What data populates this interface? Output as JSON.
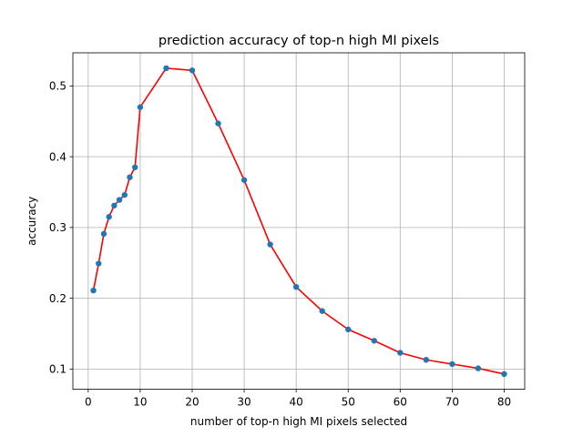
{
  "chart_data": {
    "type": "line",
    "title": "prediction accuracy of top-n high MI pixels",
    "xlabel": "number of top-n high MI pixels selected",
    "ylabel": "accuracy",
    "xlim": [
      -2.95,
      83.95
    ],
    "ylim": [
      0.0714,
      0.5468
    ],
    "xticks": [
      0,
      10,
      20,
      30,
      40,
      50,
      60,
      70,
      80
    ],
    "yticks": [
      0.1,
      0.2,
      0.3,
      0.4,
      0.5
    ],
    "grid": true,
    "colors": {
      "line": "#ff0000",
      "marker": "#1f77b4",
      "grid": "#b0b0b0"
    },
    "series": [
      {
        "x": [
          1,
          2,
          3,
          4,
          5,
          6,
          7,
          8,
          9,
          10,
          15,
          20,
          25,
          30,
          35,
          40,
          45,
          50,
          55,
          60,
          65,
          70,
          75,
          80
        ],
        "y": [
          0.211,
          0.249,
          0.291,
          0.315,
          0.331,
          0.339,
          0.346,
          0.371,
          0.385,
          0.47,
          0.525,
          0.522,
          0.447,
          0.367,
          0.276,
          0.216,
          0.182,
          0.156,
          0.14,
          0.123,
          0.113,
          0.107,
          0.101,
          0.093
        ]
      }
    ]
  }
}
